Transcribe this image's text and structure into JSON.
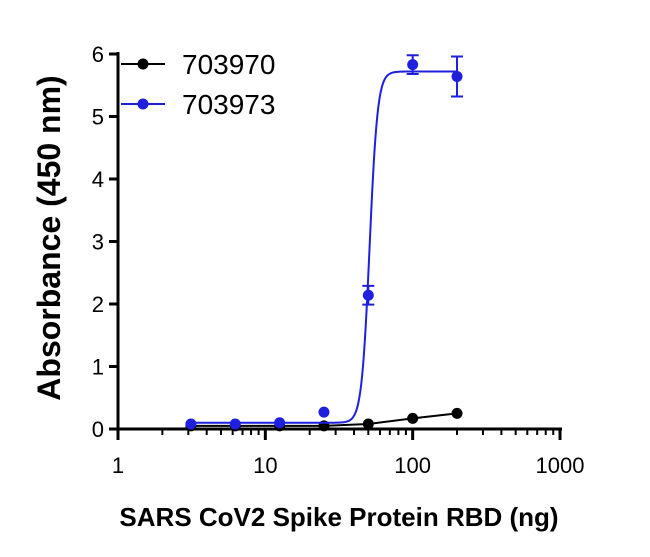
{
  "chart_data": {
    "type": "scatter",
    "xlabel": "SARS CoV2 Spike Protein RBD (ng)",
    "ylabel": "Absorbance (450 nm)",
    "xscale": "log",
    "xlim": [
      1,
      1000
    ],
    "ylim": [
      0,
      6
    ],
    "xticks": [
      1,
      10,
      100,
      1000
    ],
    "xtick_labels": [
      "1",
      "10",
      "100",
      "1000"
    ],
    "yticks": [
      0,
      1,
      2,
      3,
      4,
      5,
      6
    ],
    "ytick_labels": [
      "0",
      "1",
      "2",
      "3",
      "4",
      "5",
      "6"
    ],
    "grid": false,
    "legend_position": "top-left",
    "series": [
      {
        "name": "703970",
        "color": "#000000",
        "x": [
          3.125,
          6.25,
          12.5,
          25,
          50,
          100,
          200
        ],
        "y": [
          0.05,
          0.05,
          0.05,
          0.05,
          0.08,
          0.17,
          0.25
        ],
        "fit": "connected"
      },
      {
        "name": "703973",
        "color": "#1f1fe0",
        "x": [
          3.125,
          6.25,
          12.5,
          25,
          50,
          100,
          200
        ],
        "y": [
          0.08,
          0.08,
          0.1,
          0.27,
          2.14,
          5.83,
          5.64
        ],
        "error": [
          0,
          0,
          0,
          0,
          0.15,
          0.15,
          0.32
        ],
        "fit": "sigmoidal",
        "fit_params": {
          "bottom": 0.1,
          "top": 5.72,
          "ec50": 51,
          "hill": 16
        }
      }
    ]
  }
}
